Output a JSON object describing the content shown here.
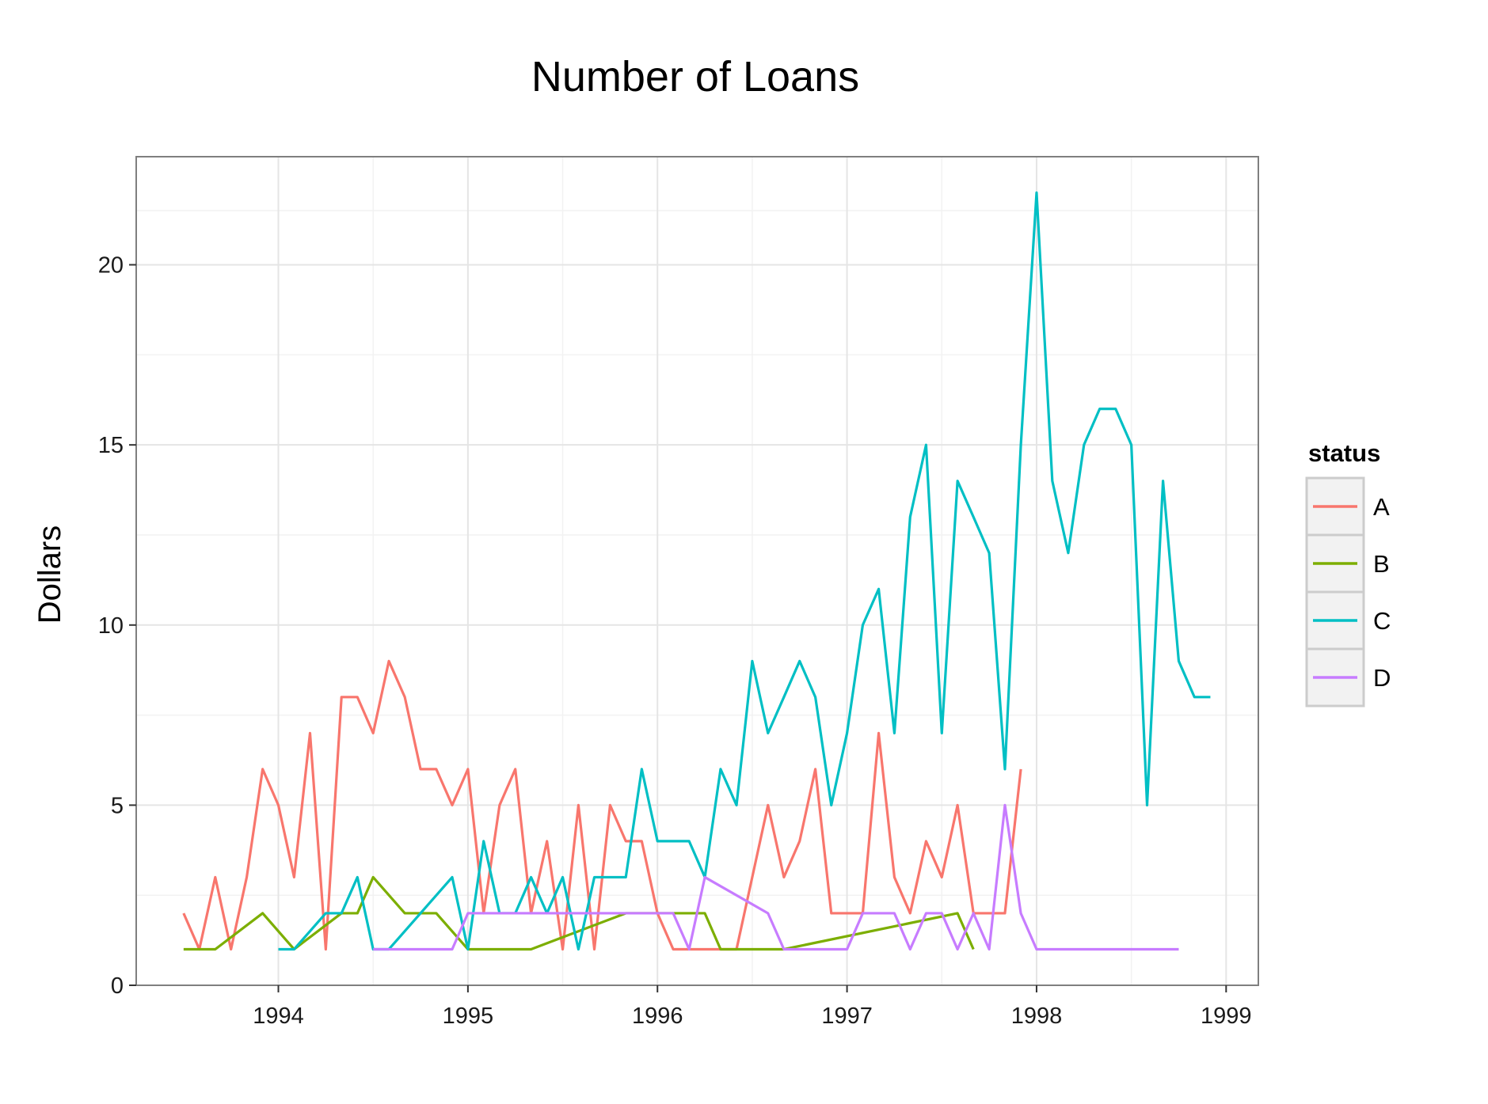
{
  "chart_data": {
    "type": "line",
    "title": "Number of Loans",
    "xlabel": "",
    "ylabel": "Dollars",
    "x_ticks": [
      "1994",
      "1995",
      "1996",
      "1997",
      "1998",
      "1999"
    ],
    "y_ticks": [
      "0",
      "5",
      "10",
      "15",
      "20"
    ],
    "xlim": [
      1993.25,
      1999.17
    ],
    "ylim": [
      0,
      23
    ],
    "grid": true,
    "legend_title": "status",
    "legend_position": "right",
    "series": [
      {
        "name": "A",
        "color": "#F8766D",
        "points": [
          [
            1993.5,
            2
          ],
          [
            1993.583,
            1
          ],
          [
            1993.667,
            3
          ],
          [
            1993.75,
            1
          ],
          [
            1993.833,
            3
          ],
          [
            1993.917,
            6
          ],
          [
            1994.0,
            5
          ],
          [
            1994.083,
            3
          ],
          [
            1994.167,
            7
          ],
          [
            1994.25,
            1
          ],
          [
            1994.333,
            8
          ],
          [
            1994.417,
            8
          ],
          [
            1994.5,
            7
          ],
          [
            1994.583,
            9
          ],
          [
            1994.667,
            8
          ],
          [
            1994.75,
            6
          ],
          [
            1994.833,
            6
          ],
          [
            1994.917,
            5
          ],
          [
            1995.0,
            6
          ],
          [
            1995.083,
            2
          ],
          [
            1995.167,
            5
          ],
          [
            1995.25,
            6
          ],
          [
            1995.333,
            2
          ],
          [
            1995.417,
            4
          ],
          [
            1995.5,
            1
          ],
          [
            1995.583,
            5
          ],
          [
            1995.667,
            1
          ],
          [
            1995.75,
            5
          ],
          [
            1995.833,
            4
          ],
          [
            1995.917,
            4
          ],
          [
            1996.0,
            2
          ],
          [
            1996.083,
            1
          ],
          [
            1996.167,
            1
          ],
          [
            1996.25,
            1
          ],
          [
            1996.333,
            1
          ],
          [
            1996.417,
            1
          ],
          [
            1996.5,
            3
          ],
          [
            1996.583,
            5
          ],
          [
            1996.667,
            3
          ],
          [
            1996.75,
            4
          ],
          [
            1996.833,
            6
          ],
          [
            1996.917,
            2
          ],
          [
            1997.0,
            2
          ],
          [
            1997.083,
            2
          ],
          [
            1997.167,
            7
          ],
          [
            1997.25,
            3
          ],
          [
            1997.333,
            2
          ],
          [
            1997.417,
            4
          ],
          [
            1997.5,
            3
          ],
          [
            1997.583,
            5
          ],
          [
            1997.667,
            2
          ],
          [
            1997.75,
            2
          ],
          [
            1997.833,
            2
          ],
          [
            1997.917,
            6
          ]
        ]
      },
      {
        "name": "B",
        "color": "#7CAE00",
        "points": [
          [
            1993.5,
            1
          ],
          [
            1993.667,
            1
          ],
          [
            1993.917,
            2
          ],
          [
            1994.083,
            1
          ],
          [
            1994.333,
            2
          ],
          [
            1994.417,
            2
          ],
          [
            1994.5,
            3
          ],
          [
            1994.667,
            2
          ],
          [
            1994.833,
            2
          ],
          [
            1995.0,
            1
          ],
          [
            1995.333,
            1
          ],
          [
            1995.833,
            2
          ],
          [
            1996.25,
            2
          ],
          [
            1996.333,
            1
          ],
          [
            1996.667,
            1
          ],
          [
            1997.583,
            2
          ],
          [
            1997.667,
            1
          ]
        ]
      },
      {
        "name": "C",
        "color": "#00BFC4",
        "points": [
          [
            1994.0,
            1
          ],
          [
            1994.083,
            1
          ],
          [
            1994.25,
            2
          ],
          [
            1994.333,
            2
          ],
          [
            1994.417,
            3
          ],
          [
            1994.5,
            1
          ],
          [
            1994.583,
            1
          ],
          [
            1994.917,
            3
          ],
          [
            1995.0,
            1
          ],
          [
            1995.083,
            4
          ],
          [
            1995.167,
            2
          ],
          [
            1995.25,
            2
          ],
          [
            1995.333,
            3
          ],
          [
            1995.417,
            2
          ],
          [
            1995.5,
            3
          ],
          [
            1995.583,
            1
          ],
          [
            1995.667,
            3
          ],
          [
            1995.75,
            3
          ],
          [
            1995.833,
            3
          ],
          [
            1995.917,
            6
          ],
          [
            1996.0,
            4
          ],
          [
            1996.083,
            4
          ],
          [
            1996.167,
            4
          ],
          [
            1996.25,
            3
          ],
          [
            1996.333,
            6
          ],
          [
            1996.417,
            5
          ],
          [
            1996.5,
            9
          ],
          [
            1996.583,
            7
          ],
          [
            1996.667,
            8
          ],
          [
            1996.75,
            9
          ],
          [
            1996.833,
            8
          ],
          [
            1996.917,
            5
          ],
          [
            1997.0,
            7
          ],
          [
            1997.083,
            10
          ],
          [
            1997.167,
            11
          ],
          [
            1997.25,
            7
          ],
          [
            1997.333,
            13
          ],
          [
            1997.417,
            15
          ],
          [
            1997.5,
            7
          ],
          [
            1997.583,
            14
          ],
          [
            1997.667,
            13
          ],
          [
            1997.75,
            12
          ],
          [
            1997.833,
            6
          ],
          [
            1997.917,
            15
          ],
          [
            1998.0,
            22
          ],
          [
            1998.083,
            14
          ],
          [
            1998.167,
            12
          ],
          [
            1998.25,
            15
          ],
          [
            1998.333,
            16
          ],
          [
            1998.417,
            16
          ],
          [
            1998.5,
            15
          ],
          [
            1998.583,
            5
          ],
          [
            1998.667,
            14
          ],
          [
            1998.75,
            9
          ],
          [
            1998.833,
            8
          ],
          [
            1998.917,
            8
          ]
        ]
      },
      {
        "name": "D",
        "color": "#C77CFF",
        "points": [
          [
            1994.5,
            1
          ],
          [
            1994.917,
            1
          ],
          [
            1995.0,
            2
          ],
          [
            1996.083,
            2
          ],
          [
            1996.167,
            1
          ],
          [
            1996.25,
            3
          ],
          [
            1996.583,
            2
          ],
          [
            1996.667,
            1
          ],
          [
            1997.0,
            1
          ],
          [
            1997.083,
            2
          ],
          [
            1997.25,
            2
          ],
          [
            1997.333,
            1
          ],
          [
            1997.417,
            2
          ],
          [
            1997.5,
            2
          ],
          [
            1997.583,
            1
          ],
          [
            1997.667,
            2
          ],
          [
            1997.75,
            1
          ],
          [
            1997.833,
            5
          ],
          [
            1997.917,
            2
          ],
          [
            1998.0,
            1
          ],
          [
            1998.75,
            1
          ]
        ]
      }
    ]
  }
}
